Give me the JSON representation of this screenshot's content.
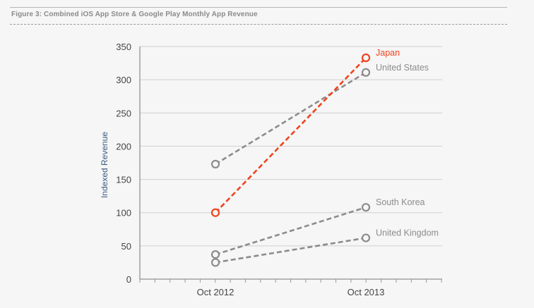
{
  "figure": {
    "title": "Figure 3: Combined iOS App Store & Google Play Monthly App Revenue"
  },
  "colors": {
    "highlight": "#f0431e",
    "series": "#8c8c8c",
    "grid": "#cfcfcf",
    "axis_text": "#444444",
    "ylabel": "#3d5a86"
  },
  "chart_data": {
    "type": "line",
    "title": "Figure 3: Combined iOS App Store & Google Play Monthly App Revenue",
    "xlabel": "",
    "ylabel": "Indexed Revenue",
    "categories": [
      "Oct 2012",
      "Oct 2013"
    ],
    "ylim": [
      0,
      350
    ],
    "yticks": [
      0,
      50,
      100,
      150,
      200,
      250,
      300,
      350
    ],
    "grid": true,
    "series": [
      {
        "name": "Japan",
        "values": [
          100,
          333
        ],
        "highlight": true
      },
      {
        "name": "United States",
        "values": [
          173,
          311
        ],
        "highlight": false
      },
      {
        "name": "South Korea",
        "values": [
          37,
          108
        ],
        "highlight": false
      },
      {
        "name": "United Kingdom",
        "values": [
          25,
          62
        ],
        "highlight": false
      }
    ]
  }
}
